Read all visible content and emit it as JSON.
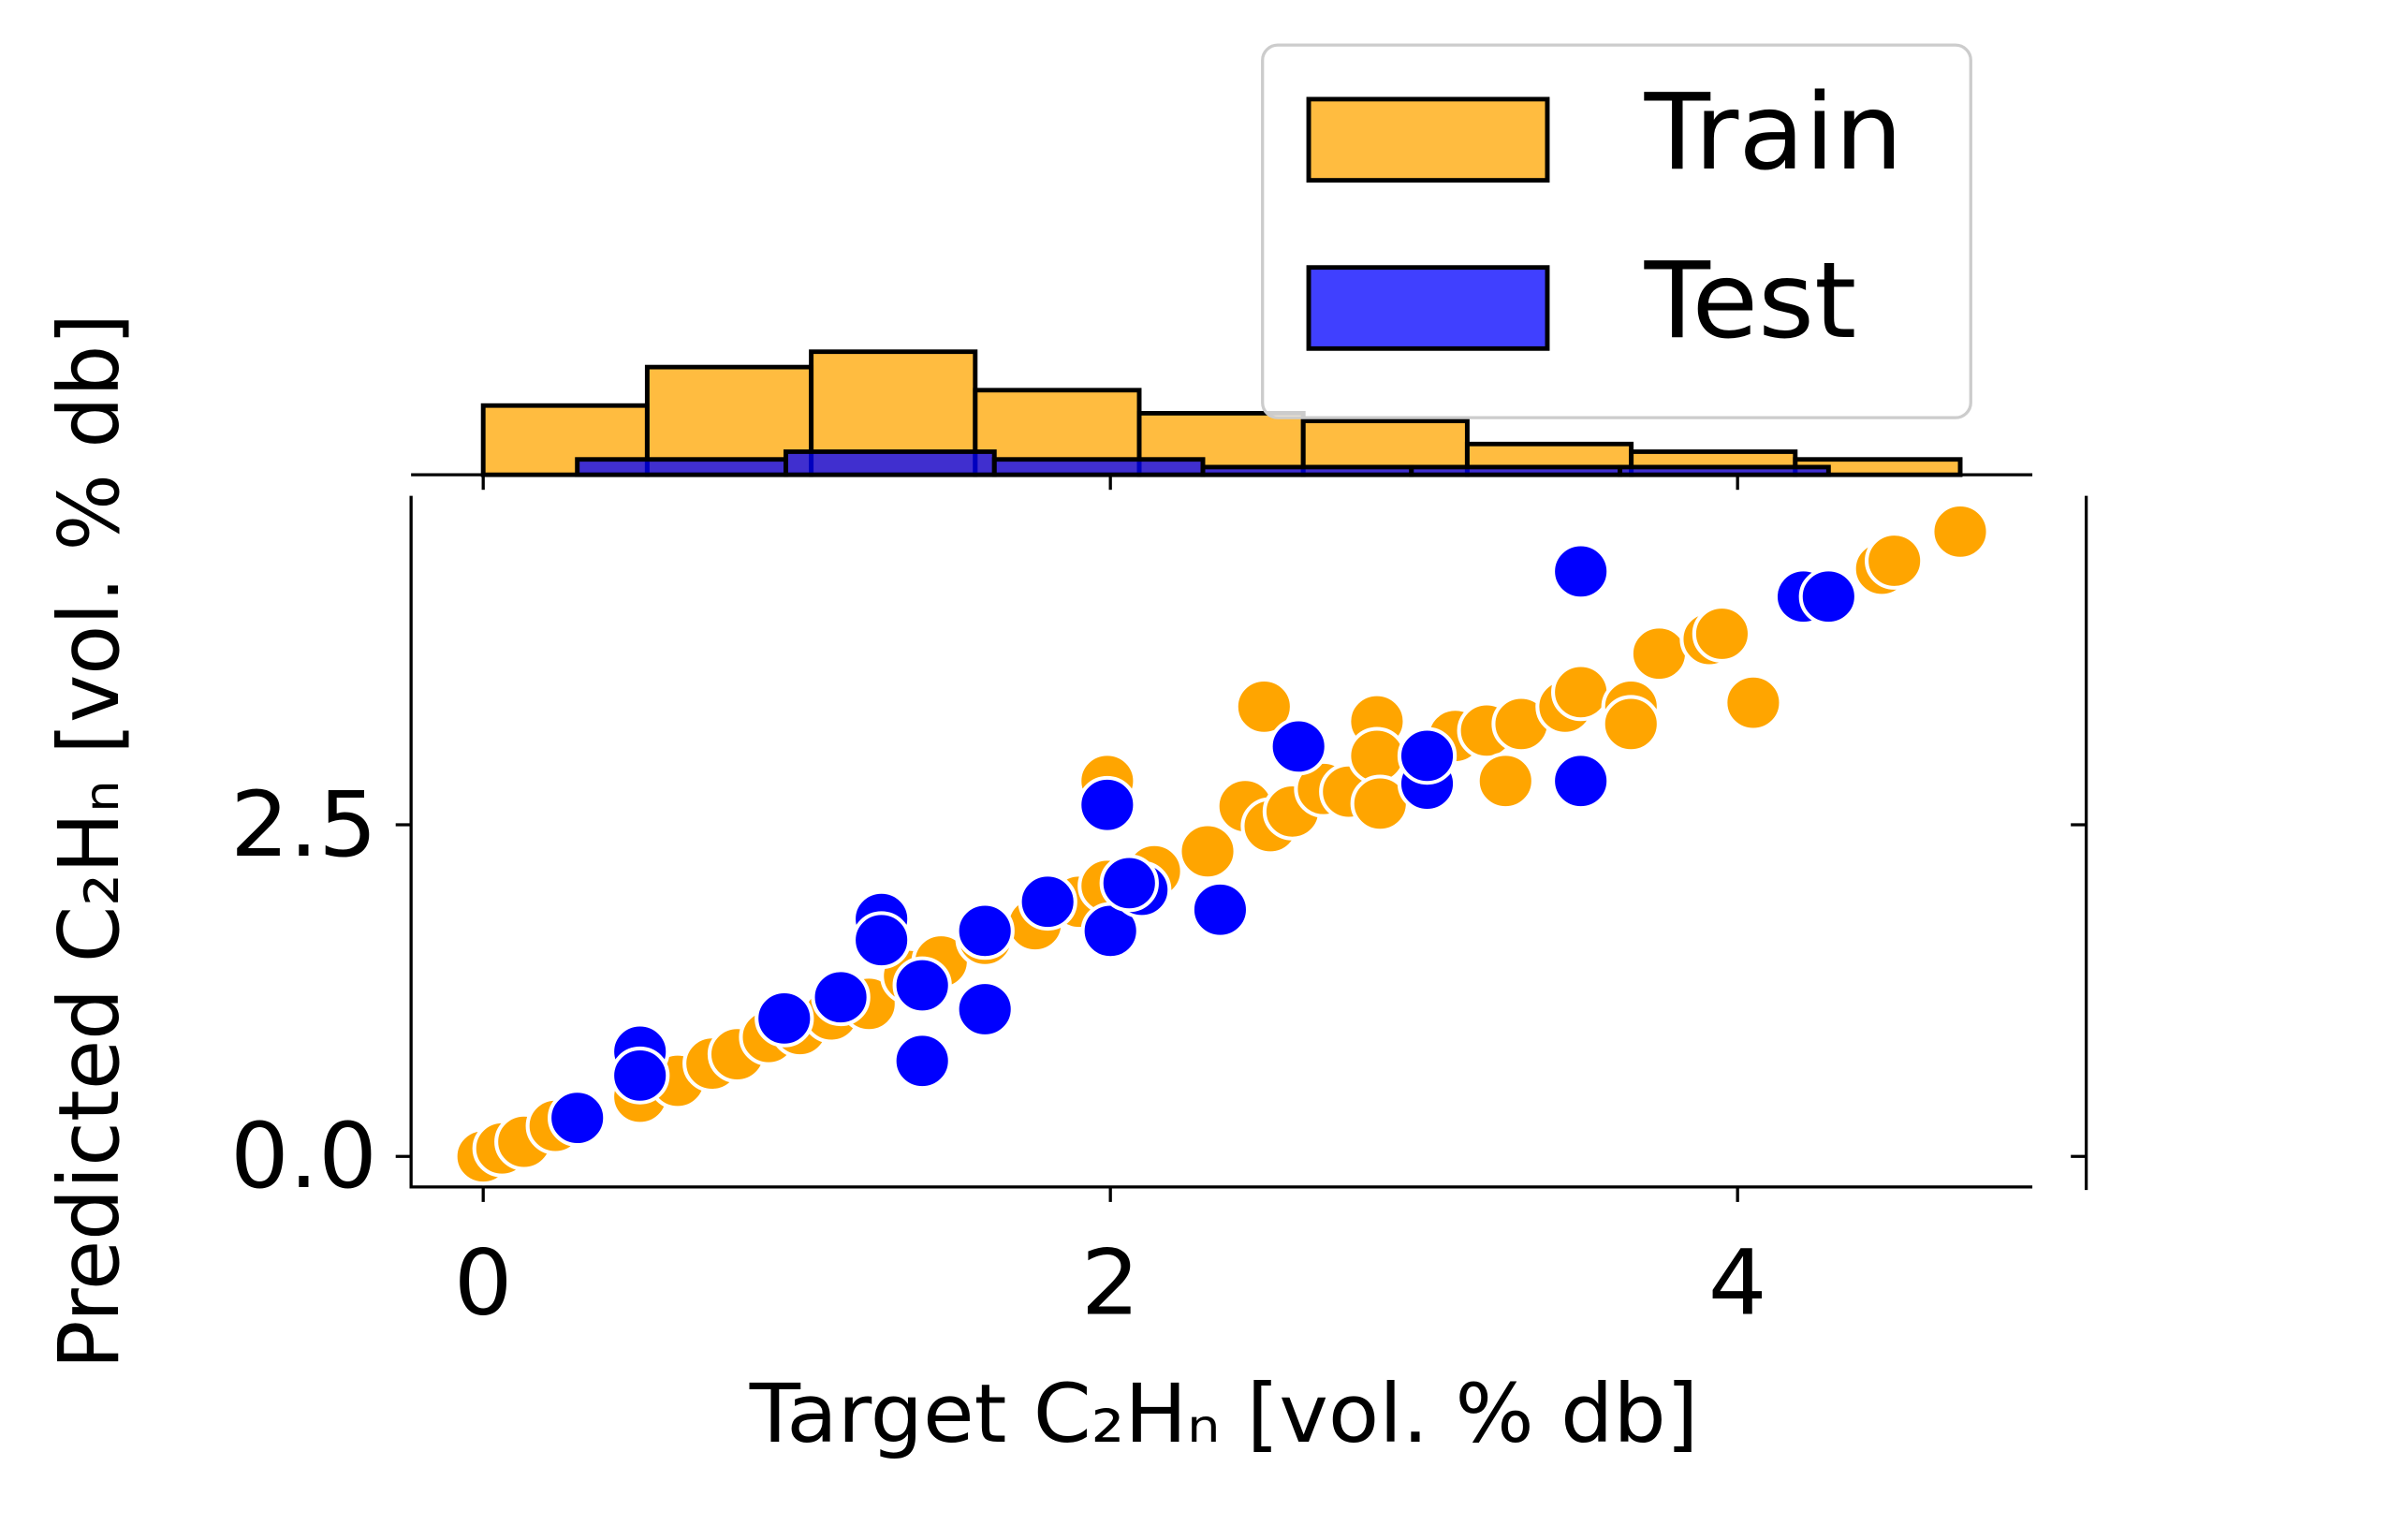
{
  "chart_data": [
    {
      "type": "histogram",
      "xlim": [
        -0.23,
        4.94
      ],
      "ylim": [
        0,
        16.8
      ],
      "xticks": [
        0,
        2,
        4
      ],
      "legend": "upper right",
      "series": [
        {
          "name": "Train",
          "color": "#ffa500",
          "bins": [
            0,
            0.523,
            1.046,
            1.569,
            2.092,
            2.615,
            3.138,
            3.661,
            4.184,
            4.71
          ],
          "values": [
            9,
            14,
            16,
            11,
            8,
            7,
            4,
            3,
            2
          ]
        },
        {
          "name": "Test",
          "color": "#0000ff",
          "bins": [
            0.3,
            0.965,
            1.63,
            2.295,
            2.96,
            3.625,
            4.29
          ],
          "values": [
            2,
            3,
            2,
            1,
            1,
            1
          ]
        }
      ]
    },
    {
      "type": "scatter",
      "xlabel": "Target C₂Hₙ [vol. % db]",
      "ylabel": "Predicted C₂Hₙ [vol. % db]",
      "xlim": [
        -0.23,
        4.94
      ],
      "ylim": [
        -0.23,
        4.98
      ],
      "xticks": [
        0,
        2,
        4
      ],
      "yticks": [
        {
          "value": 0,
          "label": "0.0"
        },
        2.5
      ],
      "series": [
        {
          "name": "Train",
          "color": "#ffa500",
          "x": [
            0,
            0.06,
            0.13,
            0.23,
            0.5,
            0.62,
            0.73,
            0.81,
            0.91,
            1.01,
            1.11,
            1.23,
            1.36,
            1.46,
            1.6,
            1.76,
            1.9,
            1.99,
            1.99,
            2.14,
            2.31,
            2.43,
            2.49,
            2.51,
            2.58,
            2.68,
            2.76,
            2.85,
            2.85,
            2.86,
            3.1,
            3.2,
            3.26,
            3.31,
            3.45,
            3.5,
            3.66,
            3.66,
            3.75,
            3.91,
            3.95,
            4.05,
            4.2,
            4.46,
            4.5,
            4.71
          ],
          "values": [
            0,
            0.06,
            0.11,
            0.23,
            0.45,
            0.57,
            0.7,
            0.77,
            0.9,
            0.96,
            1.07,
            1.15,
            1.36,
            1.47,
            1.64,
            1.75,
            1.92,
            2.83,
            2.04,
            2.15,
            2.3,
            2.64,
            3.39,
            2.49,
            2.6,
            2.77,
            2.75,
            3.28,
            3.02,
            2.66,
            3.17,
            3.21,
            2.83,
            3.26,
            3.39,
            3.5,
            3.39,
            3.26,
            3.79,
            3.9,
            3.94,
            3.42,
            4.21,
            4.43,
            4.49,
            4.71
          ]
        },
        {
          "name": "Test",
          "color": "#0000ff",
          "x": [
            0.3,
            0.5,
            0.5,
            0.96,
            1.14,
            1.27,
            1.27,
            1.4,
            1.4,
            1.6,
            1.6,
            1.8,
            1.99,
            2.0,
            2.1,
            2.06,
            2.35,
            2.6,
            3.01,
            3.01,
            3.5,
            3.5,
            4.21,
            4.29
          ],
          "values": [
            0.29,
            0.79,
            0.61,
            1.04,
            1.2,
            1.79,
            1.63,
            1.29,
            0.72,
            1.11,
            1.7,
            1.92,
            2.65,
            1.7,
            2.01,
            2.06,
            1.86,
            3.09,
            2.81,
            3.02,
            4.41,
            2.83,
            4.22,
            4.22
          ]
        }
      ]
    }
  ]
}
